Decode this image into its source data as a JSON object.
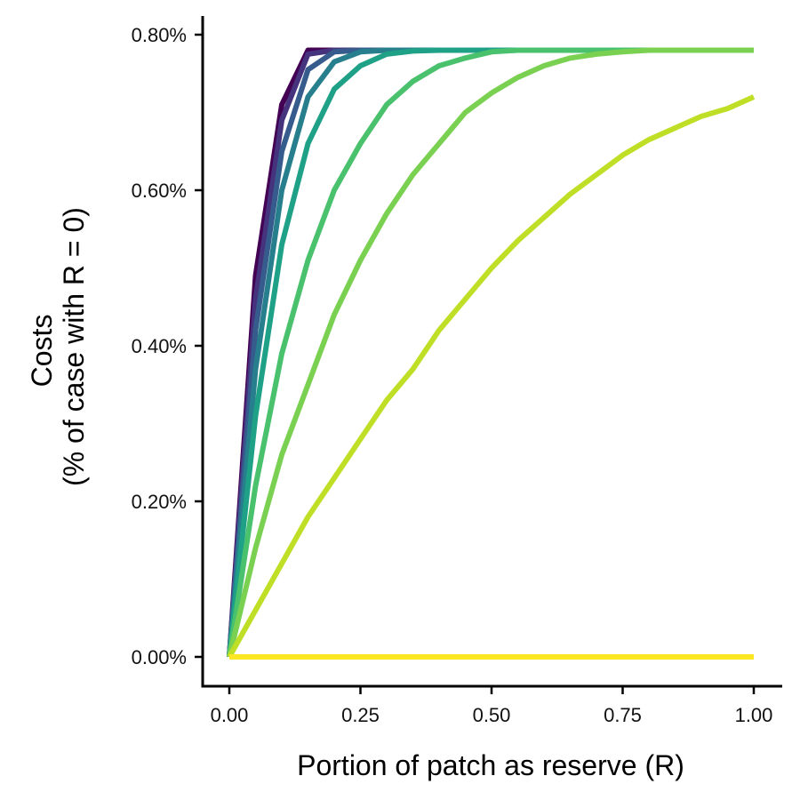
{
  "chart_data": {
    "type": "line",
    "title": "",
    "xlabel": "Portion of patch as reserve (R)",
    "ylabel_lines": [
      "Costs",
      "(% of case with R = 0)"
    ],
    "xlim": [
      0,
      1
    ],
    "ylim": [
      0,
      0.8
    ],
    "x_ticks": [
      0,
      0.25,
      0.5,
      0.75,
      1.0
    ],
    "x_tick_labels": [
      "0.00",
      "0.25",
      "0.50",
      "0.75",
      "1.00"
    ],
    "y_ticks": [
      0,
      0.2,
      0.4,
      0.6,
      0.8
    ],
    "y_tick_labels": [
      "0.00%",
      "0.20%",
      "0.40%",
      "0.60%",
      "0.80%"
    ],
    "grid": false,
    "legend": "none",
    "max_value": 0.78,
    "x": [
      0,
      0.05,
      0.1,
      0.15,
      0.2,
      0.25,
      0.3,
      0.35,
      0.4,
      0.45,
      0.5,
      0.55,
      0.6,
      0.65,
      0.7,
      0.75,
      0.8,
      0.85,
      0.9,
      0.95,
      1.0
    ],
    "series": [
      {
        "color": "#440154",
        "saturation_r": 0.15,
        "values": [
          0,
          0.49,
          0.71,
          0.78,
          0.78,
          0.78,
          0.78,
          0.78,
          0.78,
          0.78,
          0.78,
          0.78,
          0.78,
          0.78,
          0.78,
          0.78,
          0.78,
          0.78,
          0.78,
          0.78,
          0.78
        ]
      },
      {
        "color": "#46337E",
        "values": [
          0,
          0.46,
          0.69,
          0.775,
          0.78,
          0.78,
          0.78,
          0.78,
          0.78,
          0.78,
          0.78,
          0.78,
          0.78,
          0.78,
          0.78,
          0.78,
          0.78,
          0.78,
          0.78,
          0.78,
          0.78
        ]
      },
      {
        "color": "#365C8D",
        "values": [
          0,
          0.42,
          0.65,
          0.755,
          0.778,
          0.78,
          0.78,
          0.78,
          0.78,
          0.78,
          0.78,
          0.78,
          0.78,
          0.78,
          0.78,
          0.78,
          0.78,
          0.78,
          0.78,
          0.78,
          0.78
        ]
      },
      {
        "color": "#277F8E",
        "values": [
          0,
          0.37,
          0.6,
          0.72,
          0.765,
          0.778,
          0.78,
          0.78,
          0.78,
          0.78,
          0.78,
          0.78,
          0.78,
          0.78,
          0.78,
          0.78,
          0.78,
          0.78,
          0.78,
          0.78,
          0.78
        ]
      },
      {
        "color": "#1FA187",
        "values": [
          0,
          0.31,
          0.53,
          0.66,
          0.73,
          0.76,
          0.775,
          0.779,
          0.78,
          0.78,
          0.78,
          0.78,
          0.78,
          0.78,
          0.78,
          0.78,
          0.78,
          0.78,
          0.78,
          0.78,
          0.78
        ]
      },
      {
        "color": "#4AC16D",
        "values": [
          0,
          0.22,
          0.39,
          0.51,
          0.6,
          0.66,
          0.71,
          0.74,
          0.76,
          0.77,
          0.778,
          0.78,
          0.78,
          0.78,
          0.78,
          0.78,
          0.78,
          0.78,
          0.78,
          0.78,
          0.78
        ]
      },
      {
        "color": "#7AD151",
        "values": [
          0,
          0.14,
          0.26,
          0.35,
          0.44,
          0.51,
          0.57,
          0.62,
          0.66,
          0.7,
          0.725,
          0.745,
          0.76,
          0.77,
          0.775,
          0.778,
          0.78,
          0.78,
          0.78,
          0.78,
          0.78
        ]
      },
      {
        "color": "#BEDF26",
        "values": [
          0,
          0.06,
          0.12,
          0.18,
          0.23,
          0.28,
          0.33,
          0.37,
          0.42,
          0.46,
          0.5,
          0.535,
          0.565,
          0.595,
          0.62,
          0.645,
          0.665,
          0.68,
          0.695,
          0.705,
          0.72
        ]
      },
      {
        "color": "#FDE725",
        "values": [
          0,
          0,
          0,
          0,
          0,
          0,
          0,
          0,
          0,
          0,
          0,
          0,
          0,
          0,
          0,
          0,
          0,
          0,
          0,
          0,
          0
        ]
      }
    ]
  }
}
